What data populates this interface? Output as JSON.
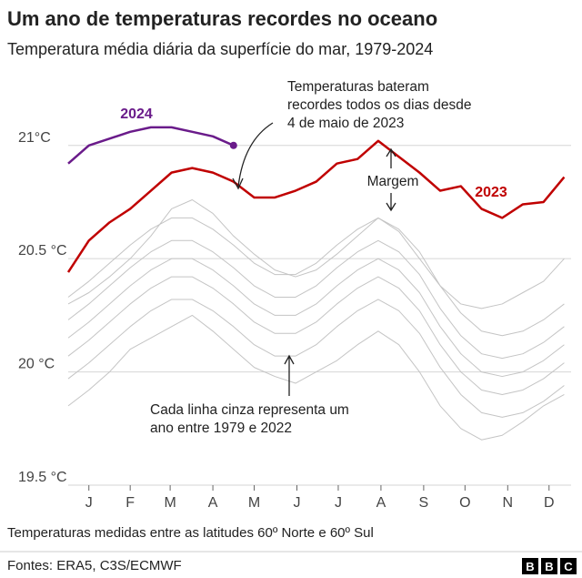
{
  "chart_data": {
    "type": "line",
    "title": "Um ano de temperaturas recordes no oceano",
    "subtitle": "Temperatura média diária da superfície do mar, 1979-2024",
    "note": "Temperaturas medidas entre as latitudes 60º Norte e 60º Sul",
    "source": "Fontes: ERA5, C3S/ECMWF",
    "logo": [
      "B",
      "B",
      "C"
    ],
    "annotations": {
      "record": [
        "Temperaturas bateram",
        "recordes todos os dias desde",
        "4 de maio de 2023"
      ],
      "margin": "Margem",
      "gray": [
        "Cada linha cinza representa um",
        "ano entre 1979 e 2022"
      ]
    },
    "xlim": [
      0,
      365
    ],
    "xticks": [
      {
        "value": 15,
        "label": "J"
      },
      {
        "value": 45,
        "label": "F"
      },
      {
        "value": 74,
        "label": "M"
      },
      {
        "value": 105,
        "label": "A"
      },
      {
        "value": 135,
        "label": "M"
      },
      {
        "value": 166,
        "label": "J"
      },
      {
        "value": 196,
        "label": "J"
      },
      {
        "value": 227,
        "label": "A"
      },
      {
        "value": 258,
        "label": "S"
      },
      {
        "value": 288,
        "label": "O"
      },
      {
        "value": 319,
        "label": "N"
      },
      {
        "value": 349,
        "label": "D"
      }
    ],
    "ylim": [
      19.5,
      21.2
    ],
    "yticks": [
      {
        "value": 21,
        "label": "21°C"
      },
      {
        "value": 20.5,
        "label": "20.5 °C"
      },
      {
        "value": 20,
        "label": "20 °C"
      },
      {
        "value": 19.5,
        "label": "19.5 °C"
      }
    ],
    "grid": true,
    "x": [
      0,
      15,
      30,
      45,
      60,
      75,
      90,
      105,
      120,
      135,
      150,
      165,
      180,
      195,
      210,
      225,
      240,
      255,
      270,
      285,
      300,
      315,
      330,
      345,
      360
    ],
    "series": [
      {
        "color": "#c4c4c4",
        "values": [
          19.97,
          20.04,
          20.12,
          20.2,
          20.27,
          20.32,
          20.32,
          20.27,
          20.2,
          20.12,
          20.07,
          20.07,
          20.12,
          20.2,
          20.27,
          20.32,
          20.27,
          20.17,
          20.02,
          19.9,
          19.82,
          19.8,
          19.82,
          19.87,
          19.94
        ]
      },
      {
        "color": "#c4c4c4",
        "values": [
          20.07,
          20.14,
          20.22,
          20.3,
          20.37,
          20.42,
          20.42,
          20.37,
          20.3,
          20.22,
          20.17,
          20.17,
          20.22,
          20.3,
          20.37,
          20.42,
          20.37,
          20.27,
          20.12,
          20.0,
          19.92,
          19.9,
          19.92,
          19.97,
          20.04
        ]
      },
      {
        "color": "#c4c4c4",
        "values": [
          20.15,
          20.22,
          20.3,
          20.38,
          20.45,
          20.5,
          20.5,
          20.45,
          20.38,
          20.3,
          20.25,
          20.25,
          20.3,
          20.38,
          20.45,
          20.5,
          20.45,
          20.35,
          20.2,
          20.08,
          20.0,
          19.98,
          20.0,
          20.05,
          20.12
        ]
      },
      {
        "color": "#c4c4c4",
        "values": [
          20.23,
          20.3,
          20.38,
          20.46,
          20.53,
          20.58,
          20.58,
          20.53,
          20.46,
          20.38,
          20.33,
          20.33,
          20.38,
          20.46,
          20.53,
          20.58,
          20.53,
          20.43,
          20.28,
          20.16,
          20.08,
          20.06,
          20.08,
          20.13,
          20.2
        ]
      },
      {
        "color": "#c4c4c4",
        "values": [
          20.33,
          20.4,
          20.48,
          20.56,
          20.63,
          20.68,
          20.68,
          20.63,
          20.56,
          20.48,
          20.43,
          20.43,
          20.48,
          20.56,
          20.63,
          20.68,
          20.63,
          20.53,
          20.38,
          20.26,
          20.18,
          20.16,
          20.18,
          20.23,
          20.3
        ]
      },
      {
        "color": "#c4c4c4",
        "values": [
          20.3,
          20.35,
          20.42,
          20.5,
          20.6,
          20.72,
          20.76,
          20.7,
          20.6,
          20.52,
          20.45,
          20.42,
          20.45,
          20.52,
          20.6,
          20.68,
          20.62,
          20.5,
          20.38,
          20.3,
          20.28,
          20.3,
          20.35,
          20.4,
          20.5
        ]
      },
      {
        "color": "#c4c4c4",
        "values": [
          19.85,
          19.92,
          20.0,
          20.1,
          20.15,
          20.2,
          20.25,
          20.18,
          20.1,
          20.02,
          19.98,
          19.95,
          20.0,
          20.05,
          20.12,
          20.18,
          20.12,
          20.0,
          19.85,
          19.75,
          19.7,
          19.72,
          19.78,
          19.85,
          19.9
        ]
      },
      {
        "name": "2023",
        "color": "#c00000",
        "values": [
          20.44,
          20.58,
          20.66,
          20.72,
          20.8,
          20.88,
          20.9,
          20.88,
          20.84,
          20.77,
          20.77,
          20.8,
          20.84,
          20.92,
          20.94,
          21.02,
          20.95,
          20.88,
          20.8,
          20.82,
          20.72,
          20.68,
          20.74,
          20.75,
          20.86
        ]
      },
      {
        "name": "2024",
        "color": "#6a1b8a",
        "values": [
          20.92,
          21.0,
          21.03,
          21.06,
          21.08,
          21.08,
          21.06,
          21.04,
          21.0,
          null,
          null,
          null,
          null,
          null,
          null,
          null,
          null,
          null,
          null,
          null,
          null,
          null,
          null,
          null,
          null
        ]
      }
    ]
  }
}
